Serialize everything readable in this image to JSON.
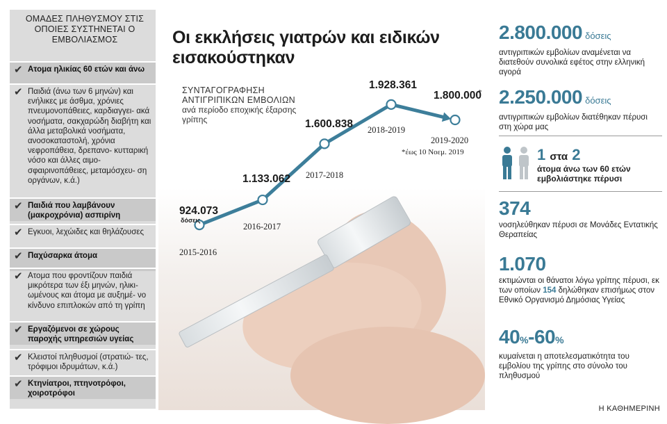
{
  "sidebar": {
    "title": "ΟΜΑΔΕΣ ΠΛΗΘΥΣΜΟΥ ΣΤΙΣ ΟΠΟΙΕΣ ΣΥΣΤΗΝΕΤΑΙ Ο ΕΜΒΟΛΙΑΣΜΟΣ",
    "items": [
      {
        "text": "Ατομα ηλικίας 60 ετών και άνω",
        "bold": true
      },
      {
        "text": "Παιδιά (άνω των 6 μηνών) και ενήλικες με άσθμα, χρόνιες πνευμονοπάθειες, καρδιαγγει- ακά νοσήματα, σακχαρώδη διαβήτη και άλλα μεταβολικά νοσήματα, ανοσοκαταστολή, χρόνια νεφροπάθεια, δρεπανο- κυτταρική νόσο και άλλες αιμο- σφαιρινοπάθειες, μεταμόσχευ- ση οργάνων, κ.ά.)",
        "bold": false
      },
      {
        "text": "Παιδιά που λαμβάνουν (μακροχρόνια) ασπιρίνη",
        "bold": true
      },
      {
        "text": "Εγκυοι, λεχώιδες και θηλάζουσες",
        "bold": false
      },
      {
        "text": "Παχύσαρκα άτομα",
        "bold": true
      },
      {
        "text": "Ατομα που φροντίζουν παιδιά μικρότερα των έξι μηνών, ηλικι- ωμένους και άτομα με αυξημέ- νο κίνδυνο επιπλοκών από τη γρίπη",
        "bold": false
      },
      {
        "text": "Εργαζόμενοι σε χώρους παροχής υπηρεσιών υγείας",
        "bold": true
      },
      {
        "text": "Κλειστοί πληθυσμοί (στρατιώ- τες, τρόφιμοι ιδρυμάτων, κ.ά.)",
        "bold": false
      },
      {
        "text": "Κτηνίατροι, πτηνοτρόφοι, χοιροτρόφοι",
        "bold": true
      }
    ]
  },
  "headline": "Οι εκκλήσεις γιατρών και ειδικών εισακούστηκαν",
  "chart_data": {
    "type": "line",
    "title": "ΣΥΝΤΑΓΟΓΡΑΦΗΣΗ ΑΝΤΙΓΡΙΠΙΚΩΝ ΕΜΒΟΛΙΩΝ",
    "subtitle": "ανά περίοδο εποχικής έξαρσης γρίπης",
    "categories": [
      "2015-2016",
      "2016-2017",
      "2017-2018",
      "2018-2019",
      "2019-2020"
    ],
    "value_labels": [
      "924.073",
      "1.133.062",
      "1.600.838",
      "1.928.361",
      "1.800.000"
    ],
    "values": [
      924073,
      1133062,
      1600838,
      1928361,
      1800000
    ],
    "first_unit": "δόσεις",
    "asterisk": "*",
    "note": "*έως 10 Νοεμ. 2019",
    "line_color": "#3d7e9a"
  },
  "stats": [
    {
      "value": "2.800.000",
      "unit": "δόσεις",
      "desc": "αντιγριπικών εμβολίων αναμένεται να διατεθούν συνολικά εφέτος στην ελληνική αγορά"
    },
    {
      "value": "2.250.000",
      "unit": "δόσεις",
      "desc": "αντιγριπικών εμβολίων διατέθηκαν πέρυσι στη χώρα μας"
    },
    {
      "ratio_a": "1",
      "ratio_mid": "στα",
      "ratio_b": "2",
      "desc": "άτομα άνω των 60 ετών εμβολιάστηκε πέρυσι"
    },
    {
      "value": "374",
      "desc": "νοσηλεύθηκαν πέρυσι σε Μονάδες Εντατικής Θεραπείας"
    },
    {
      "value": "1.070",
      "desc_a": "εκτιμώνται οι θάνατοι λόγω γρίπης πέρυσι, εκ των οποίων ",
      "highlight": "154",
      "desc_b": " δηλώθηκαν επισήμως στον Εθνικό Οργανισμό Δημόσιας Υγείας"
    },
    {
      "value_a": "40",
      "pct": "%",
      "dash": "-",
      "value_b": "60",
      "desc": "κυμαίνεται η αποτελεσματικότητα του εμβολίου της γρίπης στο σύνολο του πληθυσμού"
    }
  ],
  "colors": {
    "accent": "#3a7a95",
    "sidebar_bg": "#dcdcdc",
    "person_dark": "#3a7a95",
    "person_light": "#bfc5c9"
  },
  "credit": "Η ΚΑΘΗΜΕΡΙΝΗ"
}
